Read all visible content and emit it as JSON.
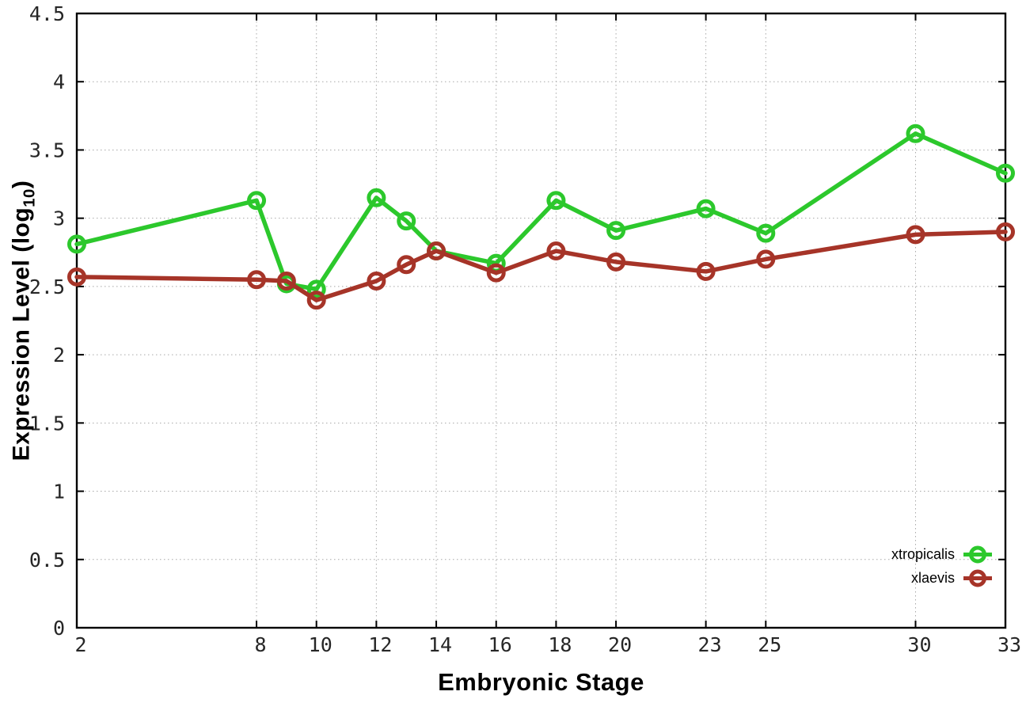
{
  "chart_data": {
    "type": "line",
    "title": "",
    "xlabel": "Embryonic Stage",
    "ylabel": "Expression Level (log10)",
    "ylabel_parts": {
      "pre": "Expression Level (log",
      "sub": "10",
      "post": ")"
    },
    "x": [
      2,
      8,
      9,
      10,
      12,
      13,
      14,
      16,
      18,
      20,
      23,
      25,
      30,
      33
    ],
    "series": [
      {
        "name": "xtropicalis",
        "color": "#2cc82c",
        "values": [
          2.81,
          3.13,
          2.52,
          2.48,
          3.15,
          2.98,
          2.76,
          2.67,
          3.13,
          2.91,
          3.07,
          2.89,
          3.62,
          3.33
        ]
      },
      {
        "name": "xlaevis",
        "color": "#a63428",
        "values": [
          2.57,
          2.55,
          2.54,
          2.4,
          2.54,
          2.66,
          2.76,
          2.6,
          2.76,
          2.68,
          2.61,
          2.7,
          2.88,
          2.9
        ]
      }
    ],
    "xlim": [
      2,
      33
    ],
    "ylim": [
      0,
      4.5
    ],
    "xticks": [
      2,
      8,
      10,
      12,
      14,
      16,
      18,
      20,
      23,
      25,
      30,
      33
    ],
    "yticks": [
      0,
      0.5,
      1,
      1.5,
      2,
      2.5,
      3,
      3.5,
      4,
      4.5
    ],
    "grid": true,
    "legend_position": "bottom-right",
    "colors": {
      "axis": "#000000",
      "grid": "#a8a8a8",
      "tick_text": "#262626"
    }
  }
}
